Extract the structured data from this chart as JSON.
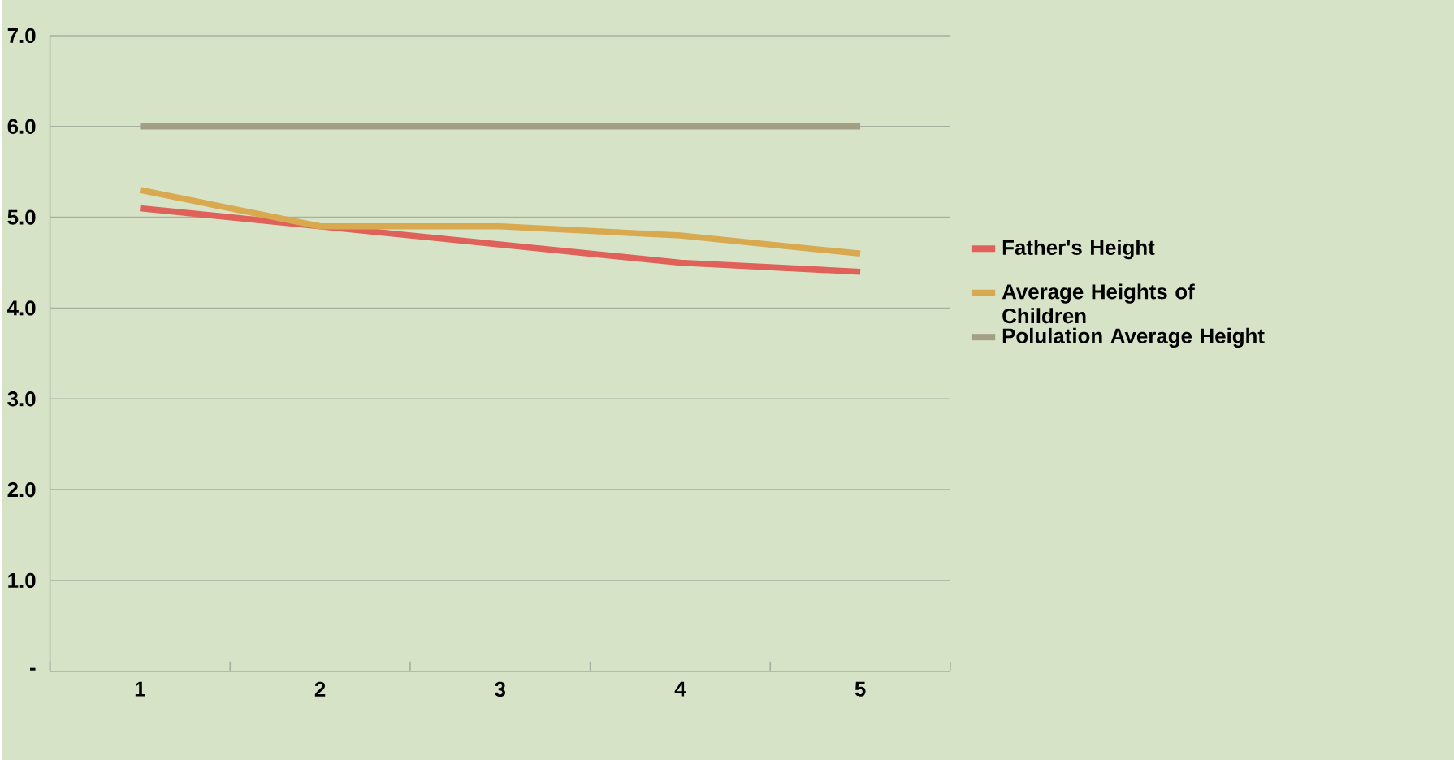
{
  "chart_data": {
    "type": "line",
    "categories": [
      "1",
      "2",
      "3",
      "4",
      "5"
    ],
    "series": [
      {
        "name": "Father's Height",
        "color": "#e0605a",
        "values": [
          5.1,
          4.9,
          4.7,
          4.5,
          4.4
        ]
      },
      {
        "name": "Average Heights of Children",
        "color": "#d9a94f",
        "values": [
          5.3,
          4.9,
          4.9,
          4.8,
          4.6
        ]
      },
      {
        "name": "Polulation Average Height",
        "color": "#a39f85",
        "values": [
          6.0,
          6.0,
          6.0,
          6.0,
          6.0
        ]
      }
    ],
    "ylim": [
      0,
      7
    ],
    "yticks": [
      {
        "value": 0,
        "label": "-"
      },
      {
        "value": 1,
        "label": "1.0"
      },
      {
        "value": 2,
        "label": "2.0"
      },
      {
        "value": 3,
        "label": "3.0"
      },
      {
        "value": 4,
        "label": "4.0"
      },
      {
        "value": 5,
        "label": "5.0"
      },
      {
        "value": 6,
        "label": "6.0"
      },
      {
        "value": 7,
        "label": "7.0"
      }
    ],
    "grid": "y",
    "legend": "right",
    "marker": "none",
    "line_style": "solid"
  }
}
